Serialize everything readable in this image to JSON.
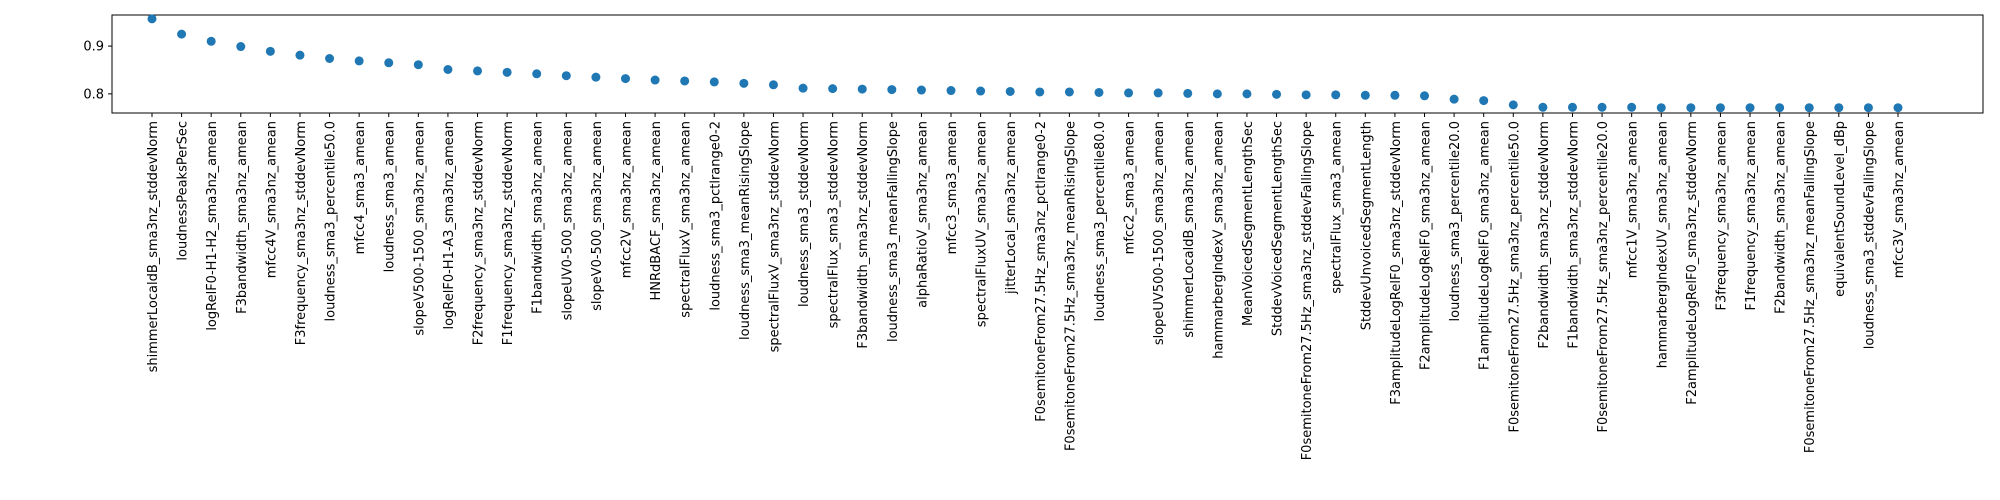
{
  "chart_data": {
    "type": "scatter",
    "title": "",
    "xlabel": "",
    "ylabel": "",
    "ylim": [
      0.76,
      0.965
    ],
    "yticks": [
      0.8,
      0.9
    ],
    "ytick_labels": [
      "0.8",
      "0.9"
    ],
    "grid": false,
    "legend": "none",
    "colors": {
      "marker": "#1f77b4",
      "axis": "#000000",
      "background": "#ffffff"
    },
    "categories": [
      "shimmerLocaldB_sma3nz_stddevNorm",
      "loudnessPeaksPerSec",
      "logRelF0-H1-H2_sma3nz_amean",
      "F3bandwidth_sma3nz_amean",
      "mfcc4V_sma3nz_amean",
      "F3frequency_sma3nz_stddevNorm",
      "loudness_sma3_percentile50.0",
      "mfcc4_sma3_amean",
      "loudness_sma3_amean",
      "slopeV500-1500_sma3nz_amean",
      "logRelF0-H1-A3_sma3nz_amean",
      "F2frequency_sma3nz_stddevNorm",
      "F1frequency_sma3nz_stddevNorm",
      "F1bandwidth_sma3nz_amean",
      "slopeUV0-500_sma3nz_amean",
      "slopeV0-500_sma3nz_amean",
      "mfcc2V_sma3nz_amean",
      "HNRdBACF_sma3nz_amean",
      "spectralFluxV_sma3nz_amean",
      "loudness_sma3_pctlrange0-2",
      "loudness_sma3_meanRisingSlope",
      "spectralFluxV_sma3nz_stddevNorm",
      "loudness_sma3_stddevNorm",
      "spectralFlux_sma3_stddevNorm",
      "F3bandwidth_sma3nz_stddevNorm",
      "loudness_sma3_meanFallingSlope",
      "alphaRatioV_sma3nz_amean",
      "mfcc3_sma3_amean",
      "spectralFluxUV_sma3nz_amean",
      "jitterLocal_sma3nz_amean",
      "F0semitoneFrom27.5Hz_sma3nz_pctlrange0-2",
      "F0semitoneFrom27.5Hz_sma3nz_meanRisingSlope",
      "loudness_sma3_percentile80.0",
      "mfcc2_sma3_amean",
      "slopeUV500-1500_sma3nz_amean",
      "shimmerLocaldB_sma3nz_amean",
      "hammarbergIndexV_sma3nz_amean",
      "MeanVoicedSegmentLengthSec",
      "StddevVoicedSegmentLengthSec",
      "F0semitoneFrom27.5Hz_sma3nz_stddevFallingSlope",
      "spectralFlux_sma3_amean",
      "StddevUnvoicedSegmentLength",
      "F3amplitudeLogRelF0_sma3nz_stddevNorm",
      "F2amplitudeLogRelF0_sma3nz_amean",
      "loudness_sma3_percentile20.0",
      "F1amplitudeLogRelF0_sma3nz_amean",
      "F0semitoneFrom27.5Hz_sma3nz_percentile50.0",
      "F2bandwidth_sma3nz_stddevNorm",
      "F1bandwidth_sma3nz_stddevNorm",
      "F0semitoneFrom27.5Hz_sma3nz_percentile20.0",
      "mfcc1V_sma3nz_amean",
      "hammarbergIndexUV_sma3nz_amean",
      "F2amplitudeLogRelF0_sma3nz_stddevNorm",
      "F3frequency_sma3nz_amean",
      "F1frequency_sma3nz_amean",
      "F2bandwidth_sma3nz_amean",
      "F0semitoneFrom27.5Hz_sma3nz_meanFallingSlope",
      "equivalentSoundLevel_dBp",
      "loudness_sma3_stddevFallingSlope",
      "mfcc3V_sma3nz_amean"
    ],
    "values": [
      0.957,
      0.925,
      0.91,
      0.899,
      0.889,
      0.881,
      0.874,
      0.869,
      0.865,
      0.861,
      0.851,
      0.848,
      0.845,
      0.842,
      0.838,
      0.835,
      0.832,
      0.829,
      0.827,
      0.825,
      0.822,
      0.819,
      0.812,
      0.811,
      0.81,
      0.809,
      0.808,
      0.807,
      0.806,
      0.805,
      0.804,
      0.804,
      0.803,
      0.802,
      0.802,
      0.801,
      0.8,
      0.8,
      0.799,
      0.798,
      0.798,
      0.797,
      0.797,
      0.796,
      0.789,
      0.786,
      0.777,
      0.772,
      0.772,
      0.772,
      0.772,
      0.771,
      0.771,
      0.771,
      0.771,
      0.771,
      0.771,
      0.771,
      0.771,
      0.771
    ]
  }
}
